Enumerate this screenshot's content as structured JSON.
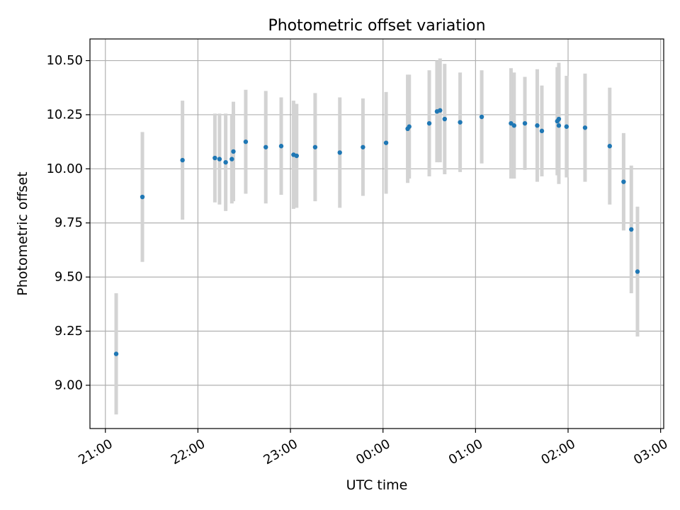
{
  "chart_data": {
    "type": "scatter",
    "title": "Photometric offset variation",
    "xlabel": "UTC time",
    "ylabel": "Photometric offset",
    "xlim": [
      "20:50",
      "03:02"
    ],
    "ylim": [
      8.8,
      10.6
    ],
    "x_ticks": [
      "21:00",
      "22:00",
      "23:00",
      "00:00",
      "01:00",
      "02:00",
      "03:00"
    ],
    "y_ticks": [
      "9.00",
      "9.25",
      "9.50",
      "9.75",
      "10.00",
      "10.25",
      "10.50"
    ],
    "grid": true,
    "error_bars": true,
    "colors": {
      "points": "#1f77b4",
      "error_bars": "#d3d3d3",
      "grid": "#b0b0b0"
    },
    "points": [
      {
        "x": "21:07",
        "y": 9.145,
        "err": 0.28
      },
      {
        "x": "21:24",
        "y": 9.87,
        "err": 0.3
      },
      {
        "x": "21:50",
        "y": 10.04,
        "err": 0.275
      },
      {
        "x": "22:11",
        "y": 10.05,
        "err": 0.205
      },
      {
        "x": "22:14",
        "y": 10.045,
        "err": 0.21
      },
      {
        "x": "22:18",
        "y": 10.03,
        "err": 0.225
      },
      {
        "x": "22:22",
        "y": 10.045,
        "err": 0.205
      },
      {
        "x": "22:23",
        "y": 10.08,
        "err": 0.23
      },
      {
        "x": "22:31",
        "y": 10.125,
        "err": 0.24
      },
      {
        "x": "22:44",
        "y": 10.1,
        "err": 0.26
      },
      {
        "x": "22:54",
        "y": 10.105,
        "err": 0.225
      },
      {
        "x": "23:02",
        "y": 10.065,
        "err": 0.25
      },
      {
        "x": "23:04",
        "y": 10.06,
        "err": 0.24
      },
      {
        "x": "23:16",
        "y": 10.1,
        "err": 0.25
      },
      {
        "x": "23:32",
        "y": 10.075,
        "err": 0.255
      },
      {
        "x": "23:47",
        "y": 10.1,
        "err": 0.225
      },
      {
        "x": "00:02",
        "y": 10.12,
        "err": 0.235
      },
      {
        "x": "00:16",
        "y": 10.185,
        "err": 0.25
      },
      {
        "x": "00:17",
        "y": 10.195,
        "err": 0.24
      },
      {
        "x": "00:30",
        "y": 10.21,
        "err": 0.245
      },
      {
        "x": "00:35",
        "y": 10.265,
        "err": 0.235
      },
      {
        "x": "00:37",
        "y": 10.27,
        "err": 0.24
      },
      {
        "x": "00:40",
        "y": 10.23,
        "err": 0.255
      },
      {
        "x": "00:50",
        "y": 10.215,
        "err": 0.23
      },
      {
        "x": "01:04",
        "y": 10.24,
        "err": 0.215
      },
      {
        "x": "01:23",
        "y": 10.21,
        "err": 0.255
      },
      {
        "x": "01:25",
        "y": 10.2,
        "err": 0.245
      },
      {
        "x": "01:32",
        "y": 10.21,
        "err": 0.215
      },
      {
        "x": "01:40",
        "y": 10.2,
        "err": 0.26
      },
      {
        "x": "01:43",
        "y": 10.175,
        "err": 0.21
      },
      {
        "x": "01:53",
        "y": 10.22,
        "err": 0.25
      },
      {
        "x": "01:54",
        "y": 10.2,
        "err": 0.27
      },
      {
        "x": "01:54",
        "y": 10.23,
        "err": 0.26
      },
      {
        "x": "01:59",
        "y": 10.195,
        "err": 0.235
      },
      {
        "x": "02:11",
        "y": 10.19,
        "err": 0.25
      },
      {
        "x": "02:27",
        "y": 10.105,
        "err": 0.27
      },
      {
        "x": "02:36",
        "y": 9.94,
        "err": 0.225
      },
      {
        "x": "02:41",
        "y": 9.72,
        "err": 0.295
      },
      {
        "x": "02:45",
        "y": 9.525,
        "err": 0.3
      }
    ]
  }
}
